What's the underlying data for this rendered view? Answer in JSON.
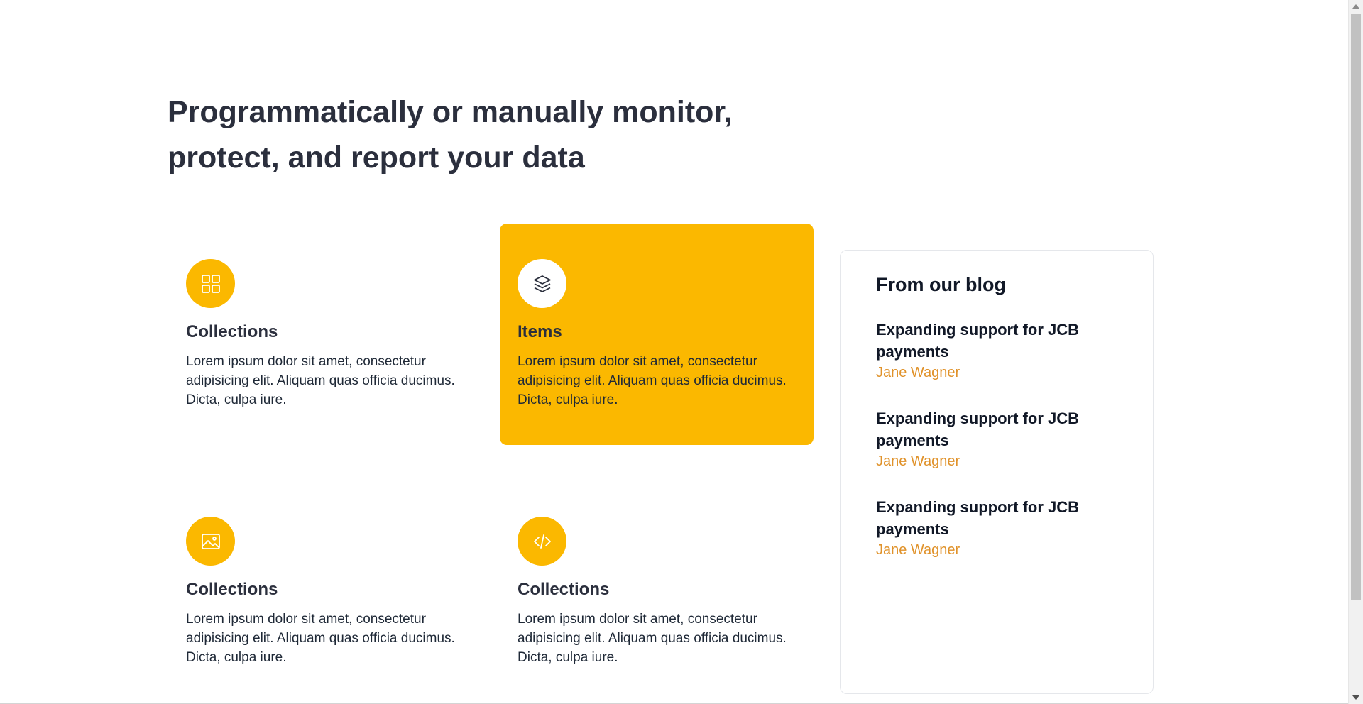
{
  "headline": "Programmatically or manually monitor, protect, and report your data",
  "features": [
    {
      "icon": "grid-icon",
      "title": "Collections",
      "text": "Lorem ipsum dolor sit amet, consectetur adipisicing elit. Aliquam quas officia ducimus. Dicta, culpa iure."
    },
    {
      "icon": "layers-icon",
      "title": "Items",
      "text": "Lorem ipsum dolor sit amet, consectetur adipisicing elit. Aliquam quas officia ducimus. Dicta, culpa iure."
    },
    {
      "icon": "image-icon",
      "title": "Collections",
      "text": "Lorem ipsum dolor sit amet, consectetur adipisicing elit. Aliquam quas officia ducimus. Dicta, culpa iure."
    },
    {
      "icon": "code-icon",
      "title": "Collections",
      "text": "Lorem ipsum dolor sit amet, consectetur adipisicing elit. Aliquam quas officia ducimus. Dicta, culpa iure."
    }
  ],
  "blog": {
    "title": "From our blog",
    "posts": [
      {
        "title": "Expanding support for JCB payments",
        "author": "Jane Wagner"
      },
      {
        "title": "Expanding support for JCB payments",
        "author": "Jane Wagner"
      },
      {
        "title": "Expanding support for JCB payments",
        "author": "Jane Wagner"
      }
    ]
  },
  "colors": {
    "accent": "#fbb800",
    "heading": "#2b2f3d",
    "author": "#e0922a"
  }
}
